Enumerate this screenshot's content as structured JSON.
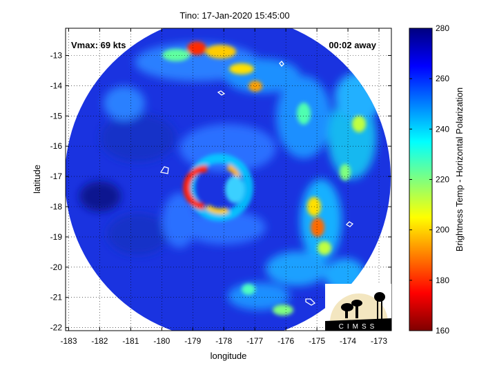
{
  "title": "Tino: 17-Jan-2020 15:45:00",
  "vmax_text": "Vmax: 69 kts",
  "away_text": "00:02 away",
  "xlabel": "longitude",
  "ylabel": "latitude",
  "colorbar_label": "Brightness Temp - Horizontal Polarization",
  "logo_text": "CIMSS",
  "x_ticks": [
    -183,
    -182,
    -181,
    -180,
    -179,
    -178,
    -177,
    -176,
    -175,
    -174,
    -173
  ],
  "y_ticks": [
    -13,
    -14,
    -15,
    -16,
    -17,
    -18,
    -19,
    -20,
    -21,
    -22
  ],
  "colorbar_ticks": [
    280,
    260,
    240,
    220,
    200,
    180,
    160
  ],
  "x_range": [
    -183.1,
    -172.6
  ],
  "y_range": [
    -22.1,
    -12.1
  ],
  "colorbar_range": [
    160,
    280
  ],
  "colormap": "jet",
  "grid": "dotted",
  "storm_center": {
    "lon": -178.0,
    "lat": -17.5
  }
}
